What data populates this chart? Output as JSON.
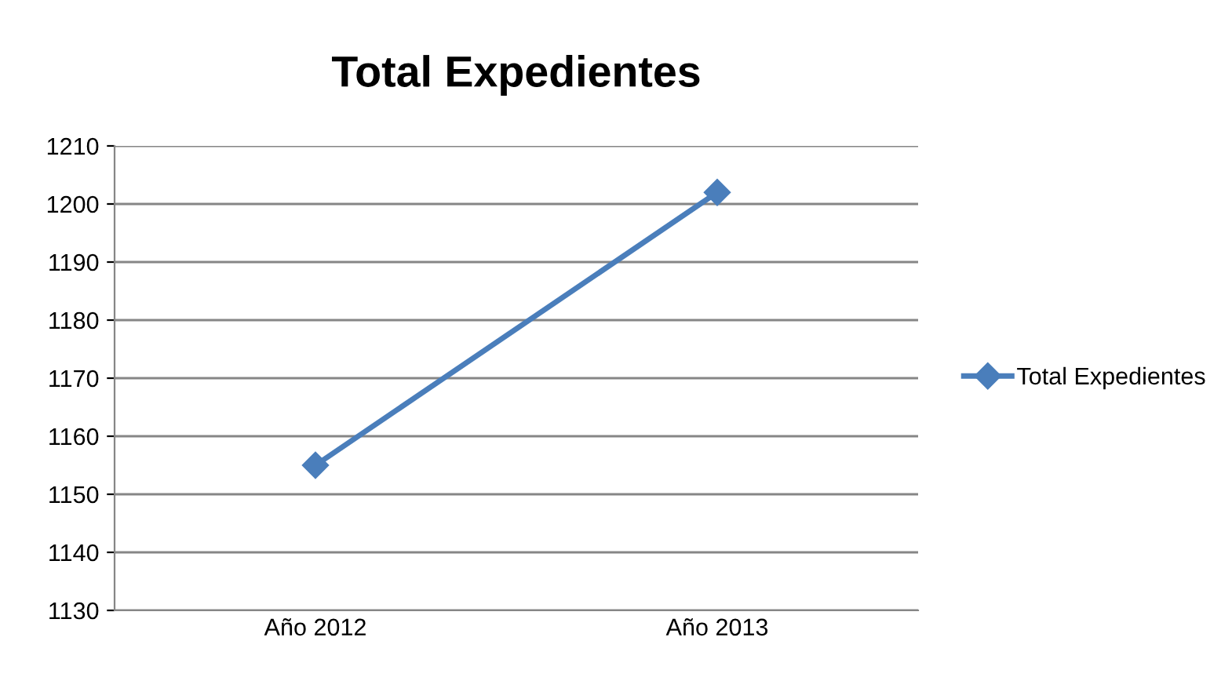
{
  "chart_data": {
    "type": "line",
    "title": "Total Expedientes",
    "categories": [
      "Año 2012",
      "Año 2013"
    ],
    "series": [
      {
        "name": "Total Expedientes",
        "color": "#4a7ebb",
        "values": [
          1155,
          1202
        ]
      }
    ],
    "ylim": [
      1130,
      1210
    ],
    "yticks": [
      1130,
      1140,
      1150,
      1160,
      1170,
      1180,
      1190,
      1200,
      1210
    ],
    "grid": "y",
    "legend": "right",
    "marker": "diamond",
    "line_style": "solid"
  }
}
